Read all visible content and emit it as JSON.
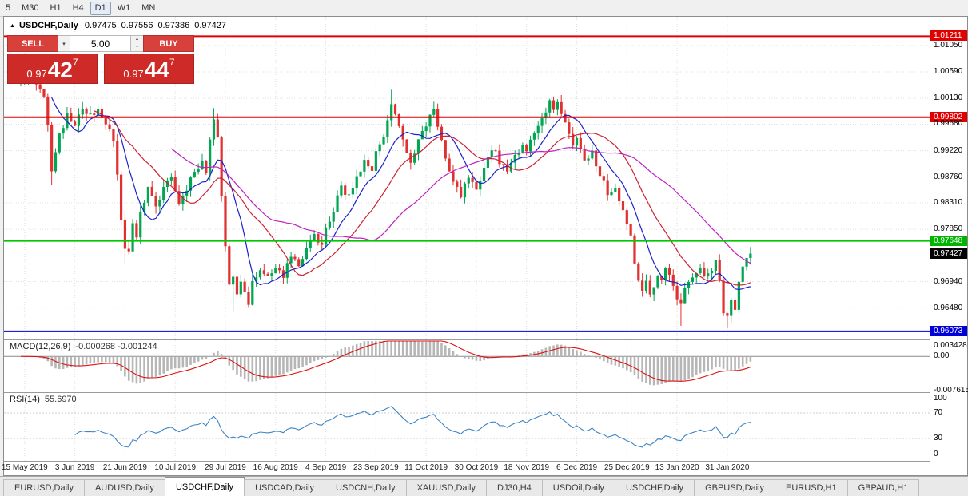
{
  "toolbar": {
    "timeframes": [
      {
        "label": "5",
        "active": false
      },
      {
        "label": "M30",
        "active": false
      },
      {
        "label": "H1",
        "active": false
      },
      {
        "label": "H4",
        "active": false
      },
      {
        "label": "D1",
        "active": true
      },
      {
        "label": "W1",
        "active": false
      },
      {
        "label": "MN",
        "active": false
      }
    ]
  },
  "icons": {
    "collapse": "▲",
    "dropdown": "▾",
    "spinner_up": "▴",
    "spinner_down": "▾"
  },
  "chart_header": {
    "symbol": "USDCHF,Daily",
    "open": "0.97475",
    "high": "0.97556",
    "low": "0.97386",
    "close": "0.97427"
  },
  "trade_panel": {
    "sell_label": "SELL",
    "buy_label": "BUY",
    "volume": "5.00",
    "sell_price": {
      "prefix": "0.97",
      "pips": "42",
      "sup": "7"
    },
    "buy_price": {
      "prefix": "0.97",
      "pips": "44",
      "sup": "7"
    }
  },
  "indicators": {
    "macd_label": "MACD(12,26,9)",
    "macd_values": "-0.000268 -0.001244",
    "rsi_label": "RSI(14)",
    "rsi_value": "55.6970"
  },
  "axes": {
    "price_labels": [
      {
        "text": "1.01211",
        "price": 1.01211,
        "style": "red"
      },
      {
        "text": "1.01050",
        "price": 1.0105,
        "style": "plain"
      },
      {
        "text": "1.00590",
        "price": 1.0059,
        "style": "plain"
      },
      {
        "text": "1.00130",
        "price": 1.0013,
        "style": "plain"
      },
      {
        "text": "0.99802",
        "price": 0.99802,
        "style": "red"
      },
      {
        "text": "0.99680",
        "price": 0.9968,
        "style": "plain"
      },
      {
        "text": "0.99220",
        "price": 0.9922,
        "style": "plain"
      },
      {
        "text": "0.98760",
        "price": 0.9876,
        "style": "plain"
      },
      {
        "text": "0.98310",
        "price": 0.9831,
        "style": "plain"
      },
      {
        "text": "0.97850",
        "price": 0.9785,
        "style": "plain"
      },
      {
        "text": "0.97648",
        "price": 0.97648,
        "style": "green"
      },
      {
        "text": "0.97427",
        "price": 0.97427,
        "style": "black"
      },
      {
        "text": "0.96940",
        "price": 0.9694,
        "style": "plain"
      },
      {
        "text": "0.96480",
        "price": 0.9648,
        "style": "plain"
      },
      {
        "text": "0.96073",
        "price": 0.96073,
        "style": "blue"
      }
    ],
    "macd_labels": [
      {
        "text": "0.003428",
        "value": 0.003428
      },
      {
        "text": "0.00",
        "value": 0
      },
      {
        "text": "-0.007615",
        "value": -0.007615
      }
    ],
    "rsi_labels": [
      {
        "text": "100",
        "value": 100
      },
      {
        "text": "70",
        "value": 70
      },
      {
        "text": "30",
        "value": 30
      },
      {
        "text": "0",
        "value": 0
      }
    ],
    "dates": [
      "15 May 2019",
      "3 Jun 2019",
      "21 Jun 2019",
      "10 Jul 2019",
      "29 Jul 2019",
      "16 Aug 2019",
      "4 Sep 2019",
      "23 Sep 2019",
      "11 Oct 2019",
      "30 Oct 2019",
      "18 Nov 2019",
      "6 Dec 2019",
      "25 Dec 2019",
      "13 Jan 2020",
      "31 Jan 2020"
    ],
    "date_start_bar": 1,
    "date_bar_step": 13
  },
  "chart_data": {
    "type": "candlestick",
    "symbol": "USDCHF",
    "timeframe": "Daily",
    "ohlc_display": {
      "open": 0.97475,
      "high": 0.97556,
      "low": 0.97386,
      "close": 0.97427
    },
    "current_price": 0.97427,
    "y_axis": {
      "min": 0.9596,
      "max": 1.0155
    },
    "num_candles": 190,
    "seed": 123456,
    "close_jitter": 0.0014,
    "wick_jitter": 0.0013,
    "first_open": 1.0038,
    "last_close": 0.97427,
    "close_waypoints": [
      [
        0,
        1.0045
      ],
      [
        2,
        1.006
      ],
      [
        4,
        1.004
      ],
      [
        6,
        1.001
      ],
      [
        7,
        0.996
      ],
      [
        8,
        0.989
      ],
      [
        9,
        0.992
      ],
      [
        10,
        0.995
      ],
      [
        12,
        0.9985
      ],
      [
        14,
        0.997
      ],
      [
        16,
        0.9995
      ],
      [
        18,
        0.998
      ],
      [
        20,
        1.0
      ],
      [
        22,
        0.9965
      ],
      [
        24,
        0.994
      ],
      [
        25,
        0.988
      ],
      [
        26,
        0.98
      ],
      [
        27,
        0.9755
      ],
      [
        28,
        0.9745
      ],
      [
        29,
        0.98
      ],
      [
        30,
        0.977
      ],
      [
        31,
        0.981
      ],
      [
        33,
        0.9855
      ],
      [
        35,
        0.9825
      ],
      [
        37,
        0.986
      ],
      [
        39,
        0.988
      ],
      [
        41,
        0.9825
      ],
      [
        43,
        0.9855
      ],
      [
        45,
        0.9885
      ],
      [
        47,
        0.9905
      ],
      [
        48,
        0.988
      ],
      [
        49,
        0.994
      ],
      [
        50,
        0.9978
      ],
      [
        51,
        0.994
      ],
      [
        52,
        0.984
      ],
      [
        53,
        0.975
      ],
      [
        54,
        0.969
      ],
      [
        55,
        0.9705
      ],
      [
        56,
        0.9672
      ],
      [
        57,
        0.97
      ],
      [
        58,
        0.968
      ],
      [
        59,
        0.966
      ],
      [
        60,
        0.969
      ],
      [
        62,
        0.9716
      ],
      [
        64,
        0.9698
      ],
      [
        66,
        0.9722
      ],
      [
        68,
        0.9705
      ],
      [
        70,
        0.974
      ],
      [
        72,
        0.9722
      ],
      [
        74,
        0.9752
      ],
      [
        76,
        0.9775
      ],
      [
        78,
        0.9758
      ],
      [
        79,
        0.979
      ],
      [
        81,
        0.982
      ],
      [
        83,
        0.9855
      ],
      [
        85,
        0.984
      ],
      [
        87,
        0.9878
      ],
      [
        89,
        0.9905
      ],
      [
        91,
        0.989
      ],
      [
        92,
        0.9915
      ],
      [
        94,
        0.9945
      ],
      [
        95,
        0.9975
      ],
      [
        96,
        0.9998
      ],
      [
        97,
        0.9985
      ],
      [
        98,
        0.996
      ],
      [
        99,
        0.9935
      ],
      [
        101,
        0.9905
      ],
      [
        103,
        0.994
      ],
      [
        105,
        0.9968
      ],
      [
        107,
        0.9992
      ],
      [
        108,
        0.997
      ],
      [
        110,
        0.9915
      ],
      [
        112,
        0.9865
      ],
      [
        114,
        0.9842
      ],
      [
        116,
        0.9878
      ],
      [
        118,
        0.9858
      ],
      [
        120,
        0.9895
      ],
      [
        122,
        0.9925
      ],
      [
        124,
        0.9905
      ],
      [
        126,
        0.9892
      ],
      [
        128,
        0.9912
      ],
      [
        130,
        0.9935
      ],
      [
        131,
        0.992
      ],
      [
        133,
        0.9955
      ],
      [
        135,
        0.9985
      ],
      [
        137,
        1.0005
      ],
      [
        138,
        0.999
      ],
      [
        139,
        1.0008
      ],
      [
        141,
        0.9965
      ],
      [
        143,
        0.9935
      ],
      [
        144,
        0.9938
      ],
      [
        146,
        0.9905
      ],
      [
        148,
        0.9922
      ],
      [
        150,
        0.988
      ],
      [
        152,
        0.9848
      ],
      [
        154,
        0.986
      ],
      [
        156,
        0.982
      ],
      [
        157,
        0.9798
      ],
      [
        158,
        0.9775
      ],
      [
        159,
        0.973
      ],
      [
        160,
        0.9695
      ],
      [
        161,
        0.968
      ],
      [
        162,
        0.97
      ],
      [
        163,
        0.9672
      ],
      [
        164,
        0.969
      ],
      [
        165,
        0.971
      ],
      [
        166,
        0.9695
      ],
      [
        167,
        0.972
      ],
      [
        168,
        0.97
      ],
      [
        169,
        0.9685
      ],
      [
        170,
        0.967
      ],
      [
        171,
        0.9655
      ],
      [
        172,
        0.9685
      ],
      [
        174,
        0.9705
      ],
      [
        176,
        0.9718
      ],
      [
        178,
        0.9702
      ],
      [
        180,
        0.9726
      ],
      [
        181,
        0.97
      ],
      [
        182,
        0.9645
      ],
      [
        183,
        0.963
      ],
      [
        184,
        0.966
      ],
      [
        185,
        0.9642
      ],
      [
        186,
        0.969
      ],
      [
        187,
        0.9715
      ],
      [
        188,
        0.9735
      ],
      [
        189,
        0.97427
      ]
    ],
    "spikes": [
      {
        "bar": 2,
        "high": 1.0068
      },
      {
        "bar": 8,
        "low": 0.9862
      },
      {
        "bar": 27,
        "low": 0.9726
      },
      {
        "bar": 50,
        "high": 0.9996
      },
      {
        "bar": 55,
        "low": 0.9641
      },
      {
        "bar": 59,
        "low": 0.9652
      },
      {
        "bar": 96,
        "high": 1.0028
      },
      {
        "bar": 107,
        "high": 1.0004
      },
      {
        "bar": 138,
        "high": 1.0016
      },
      {
        "bar": 171,
        "low": 0.9617
      },
      {
        "bar": 183,
        "low": 0.9613
      }
    ],
    "levels": [
      {
        "price": 1.01211,
        "color": "#e00000",
        "label": "1.01211"
      },
      {
        "price": 0.99802,
        "color": "#e00000",
        "label": "0.99802"
      },
      {
        "price": 0.97648,
        "color": "#00c800",
        "label": "0.97648"
      },
      {
        "price": 0.96073,
        "color": "#0000d9",
        "label": "0.96073"
      }
    ],
    "moving_averages": [
      {
        "period": 9,
        "color": "#1a22cc"
      },
      {
        "period": 20,
        "color": "#cc2233"
      },
      {
        "period": 40,
        "color": "#c020c0"
      }
    ],
    "macd": {
      "fast": 12,
      "slow": 26,
      "signal": 9,
      "displayed_values": [
        -0.000268,
        -0.001244
      ],
      "range": {
        "max": 0.003428,
        "min": -0.007615
      },
      "hist_color": "#b6b6b6",
      "signal_color": "#e01010"
    },
    "rsi": {
      "period": 14,
      "displayed_value": 55.697,
      "range": {
        "max": 100,
        "min": 0
      },
      "levels": [
        70,
        30
      ],
      "color": "#3d85c6"
    },
    "grid_color": "#e0e0e0",
    "up_color": "#00a651",
    "down_color": "#e03030"
  },
  "tab_bar": {
    "tabs": [
      "EURUSD,Daily",
      "AUDUSD,Daily",
      "USDCHF,Daily",
      "USDCAD,Daily",
      "USDCNH,Daily",
      "XAUUSD,Daily",
      "DJ30,H4",
      "USDOil,Daily",
      "USDCHF,Daily",
      "GBPUSD,Daily",
      "EURUSD,H1",
      "GBPAUD,H1"
    ],
    "active_index": 2
  }
}
